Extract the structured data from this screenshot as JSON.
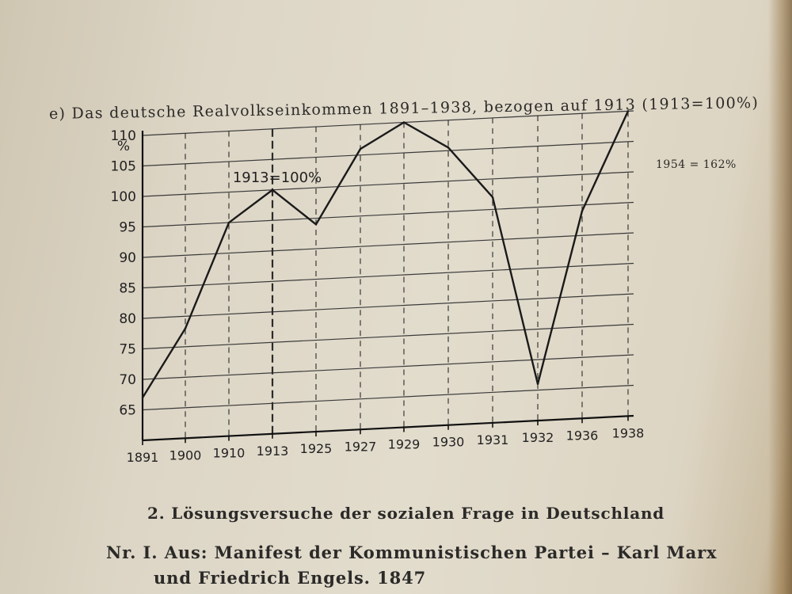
{
  "caption": "e) Das deutsche Realvolkseinkommen 1891–1938, bezogen auf 1913 (1913=100%)",
  "side_note": "1954 = 162%",
  "section_heading": "2. Lösungsversuche der sozialen Frage in Deutschland",
  "subheading_line1": "Nr. I. Aus: Manifest der Kommunistischen Partei – Karl Marx",
  "subheading_line2": "und Friedrich Engels. 1847",
  "chart_data": {
    "type": "line",
    "title": "",
    "xlabel": "",
    "ylabel": "%",
    "categories": [
      "1891",
      "1900",
      "1910",
      "1913",
      "1925",
      "1927",
      "1929",
      "1930",
      "1931",
      "1932",
      "1936",
      "1938"
    ],
    "series": [
      {
        "values": [
          67,
          78,
          95,
          100,
          94,
          106,
          110,
          105.5,
          97,
          66,
          94,
          110
        ]
      }
    ],
    "yticks": [
      65,
      70,
      75,
      80,
      85,
      90,
      95,
      100,
      105,
      110
    ],
    "ylim": [
      60,
      110
    ],
    "grid": true,
    "annotation": "1913=100%",
    "reference_category": "1913",
    "colors": {
      "line": "#1a1a1a",
      "grid": "#3a3a3a"
    }
  }
}
